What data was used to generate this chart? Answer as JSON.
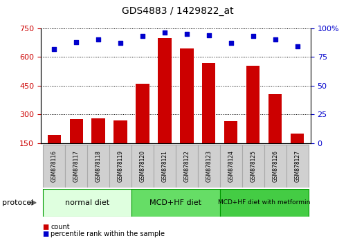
{
  "title": "GDS4883 / 1429822_at",
  "samples": [
    "GSM878116",
    "GSM878117",
    "GSM878118",
    "GSM878119",
    "GSM878120",
    "GSM878121",
    "GSM878122",
    "GSM878123",
    "GSM878124",
    "GSM878125",
    "GSM878126",
    "GSM878127"
  ],
  "counts": [
    195,
    275,
    280,
    270,
    460,
    700,
    645,
    570,
    265,
    555,
    405,
    200
  ],
  "percentile_ranks": [
    82,
    88,
    90,
    87,
    93,
    96,
    95,
    94,
    87,
    93,
    90,
    84
  ],
  "bar_color": "#cc0000",
  "dot_color": "#0000cc",
  "ylim_left": [
    150,
    750
  ],
  "yticks_left": [
    150,
    300,
    450,
    600,
    750
  ],
  "ylim_right": [
    0,
    100
  ],
  "yticks_right": [
    0,
    25,
    50,
    75,
    100
  ],
  "ytick_labels_right": [
    "0",
    "25",
    "50",
    "75",
    "100%"
  ],
  "groups": [
    {
      "label": "normal diet",
      "start": 0,
      "end": 4,
      "color": "#dfffdf"
    },
    {
      "label": "MCD+HF diet",
      "start": 4,
      "end": 8,
      "color": "#66dd66"
    },
    {
      "label": "MCD+HF diet with metformin",
      "start": 8,
      "end": 12,
      "color": "#44cc44"
    }
  ],
  "legend_count_label": "count",
  "legend_percentile_label": "percentile rank within the sample",
  "protocol_label": "protocol",
  "background_color": "#ffffff",
  "plot_bg_color": "#ffffff",
  "grid_color": "#000000",
  "tick_label_color_left": "#cc0000",
  "tick_label_color_right": "#0000cc",
  "sample_box_color": "#d0d0d0",
  "sample_box_edge": "#aaaaaa"
}
